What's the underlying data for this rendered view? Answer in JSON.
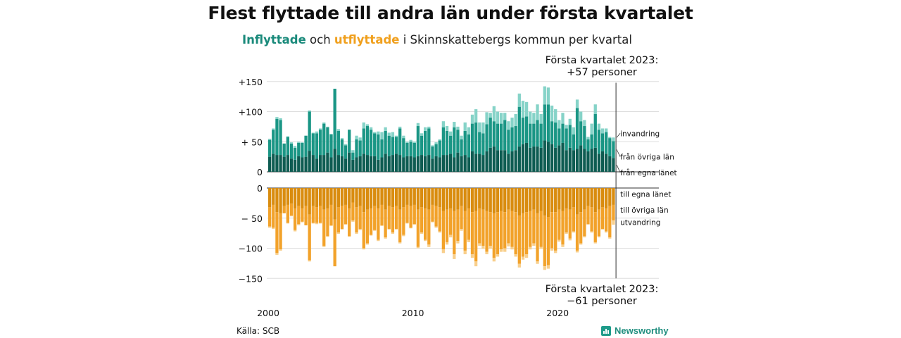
{
  "header": {
    "title": "Flest flyttade till andra län under första kvartalet",
    "subtitle_in": "Inflyttade",
    "subtitle_mid": " och ",
    "subtitle_out": "utflyttade",
    "subtitle_rest": " i Skinnskattebergs kommun per kvartal"
  },
  "annotations": {
    "top_line1": "Första kvartalet 2023:",
    "top_line2": "+57 personer",
    "bottom_line1": "Första kvartalet 2023:",
    "bottom_line2": "−61 personer"
  },
  "footer": {
    "source": "Källa: SCB",
    "brand": "Newsworthy"
  },
  "colors": {
    "in_egna": "#0e5c52",
    "in_ovriga": "#1a9685",
    "in_invandring": "#86d3c8",
    "ut_egna": "#d98c0f",
    "ut_ovriga": "#f2a22a",
    "ut_utvandring": "#f8cf8c",
    "grid": "#dddddd",
    "axis": "#333333"
  },
  "chart_data": {
    "type": "bar",
    "stacked": true,
    "x_start": "2000 Q1",
    "x_ticks": [
      "2000",
      "2010",
      "2020"
    ],
    "y_ticks_top": [
      "+150",
      "+100",
      "+ 50",
      "0"
    ],
    "y_ticks_bottom": [
      "0",
      "− 50",
      "−100",
      "−150"
    ],
    "ylim": [
      -150,
      150
    ],
    "grid": true,
    "series": [
      {
        "name": "invandring",
        "values": [
          2,
          2,
          3,
          3,
          0,
          1,
          2,
          3,
          2,
          1,
          0,
          2,
          1,
          3,
          2,
          2,
          1,
          1,
          0,
          3,
          2,
          2,
          0,
          4,
          6,
          5,
          10,
          3,
          4,
          2,
          5,
          12,
          6,
          5,
          8,
          2,
          3,
          4,
          2,
          3,
          2,
          5,
          4,
          6,
          3,
          2,
          3,
          2,
          10,
          8,
          7,
          9,
          5,
          6,
          14,
          12,
          15,
          22,
          16,
          18,
          20,
          8,
          25,
          20,
          18,
          12,
          14,
          16,
          20,
          22,
          28,
          24,
          20,
          18,
          26,
          16,
          30,
          28,
          26,
          22,
          14,
          18,
          6,
          10,
          12,
          14,
          16,
          10,
          4,
          18,
          16,
          10,
          8,
          6,
          2,
          6
        ]
      },
      {
        "name": "från övriga län",
        "values": [
          28,
          40,
          60,
          58,
          22,
          30,
          25,
          20,
          22,
          24,
          35,
          65,
          36,
          42,
          42,
          52,
          42,
          38,
          100,
          40,
          28,
          22,
          38,
          12,
          30,
          26,
          42,
          48,
          44,
          38,
          42,
          30,
          38,
          34,
          30,
          28,
          44,
          32,
          22,
          24,
          24,
          50,
          32,
          42,
          44,
          20,
          20,
          28,
          46,
          40,
          30,
          50,
          38,
          28,
          40,
          38,
          46,
          52,
          36,
          36,
          45,
          50,
          42,
          44,
          44,
          50,
          40,
          40,
          40,
          66,
          44,
          44,
          40,
          38,
          44,
          40,
          60,
          62,
          38,
          42,
          28,
          32,
          36,
          38,
          26,
          68,
          40,
          38,
          20,
          24,
          56,
          40,
          30,
          36,
          30,
          28
        ]
      },
      {
        "name": "från egna länet",
        "values": [
          25,
          30,
          28,
          28,
          25,
          28,
          22,
          20,
          26,
          24,
          25,
          35,
          28,
          22,
          28,
          28,
          32,
          24,
          38,
          28,
          26,
          22,
          32,
          20,
          24,
          26,
          30,
          28,
          26,
          26,
          20,
          24,
          30,
          26,
          28,
          30,
          28,
          24,
          26,
          26,
          24,
          26,
          28,
          26,
          28,
          22,
          26,
          24,
          28,
          28,
          30,
          24,
          32,
          26,
          28,
          24,
          34,
          30,
          30,
          28,
          34,
          40,
          42,
          36,
          36,
          36,
          30,
          34,
          36,
          42,
          46,
          48,
          40,
          42,
          42,
          40,
          52,
          50,
          46,
          40,
          44,
          48,
          36,
          40,
          36,
          38,
          44,
          38,
          34,
          38,
          40,
          30,
          34,
          30,
          26,
          23
        ]
      },
      {
        "name": "till egna länet",
        "values": [
          -32,
          -28,
          -40,
          -42,
          -30,
          -28,
          -26,
          -34,
          -30,
          -34,
          -30,
          -44,
          -30,
          -32,
          -30,
          -36,
          -34,
          -28,
          -52,
          -32,
          -30,
          -28,
          -34,
          -24,
          -32,
          -30,
          -40,
          -36,
          -34,
          -30,
          -34,
          -28,
          -36,
          -30,
          -32,
          -30,
          -36,
          -32,
          -28,
          -30,
          -28,
          -36,
          -32,
          -34,
          -36,
          -28,
          -30,
          -32,
          -38,
          -36,
          -34,
          -38,
          -36,
          -30,
          -38,
          -34,
          -40,
          -38,
          -34,
          -36,
          -38,
          -40,
          -42,
          -40,
          -38,
          -40,
          -36,
          -38,
          -40,
          -46,
          -42,
          -40,
          -38,
          -36,
          -42,
          -38,
          -46,
          -48,
          -40,
          -40,
          -36,
          -38,
          -34,
          -36,
          -32,
          -44,
          -40,
          -36,
          -30,
          -32,
          -40,
          -36,
          -32,
          -34,
          -30,
          -28
        ]
      },
      {
        "name": "till övriga län",
        "values": [
          -32,
          -38,
          -68,
          -60,
          -12,
          -30,
          -20,
          -36,
          -30,
          -22,
          -32,
          -76,
          -28,
          -26,
          -28,
          -60,
          -46,
          -34,
          -78,
          -42,
          -38,
          -32,
          -46,
          -30,
          -42,
          -38,
          -60,
          -56,
          -44,
          -40,
          -52,
          -34,
          -46,
          -38,
          -42,
          -38,
          -54,
          -46,
          -30,
          -36,
          -32,
          -62,
          -42,
          -52,
          -58,
          -28,
          -34,
          -40,
          -64,
          -54,
          -44,
          -72,
          -52,
          -38,
          -66,
          -52,
          -70,
          -84,
          -58,
          -60,
          -68,
          -56,
          -74,
          -70,
          -64,
          -60,
          -56,
          -60,
          -70,
          -80,
          -72,
          -70,
          -60,
          -56,
          -80,
          -60,
          -84,
          -80,
          -60,
          -64,
          -50,
          -56,
          -40,
          -48,
          -40,
          -60,
          -52,
          -44,
          -30,
          -40,
          -50,
          -44,
          -36,
          -38,
          -52,
          -26
        ]
      },
      {
        "name": "utvandring",
        "values": [
          -2,
          -2,
          -3,
          -2,
          0,
          -1,
          -1,
          -2,
          -2,
          -1,
          0,
          -2,
          -1,
          -2,
          -1,
          -2,
          -1,
          -1,
          0,
          -2,
          -1,
          -1,
          -1,
          -2,
          -2,
          -2,
          -2,
          -2,
          -1,
          -1,
          -2,
          -1,
          -2,
          -1,
          -2,
          -1,
          -2,
          -2,
          -1,
          -1,
          -1,
          -2,
          -2,
          -2,
          -4,
          -1,
          -2,
          -2,
          -6,
          -4,
          -4,
          -8,
          -4,
          -3,
          -6,
          -4,
          -6,
          -8,
          -4,
          -5,
          -4,
          -5,
          -6,
          -4,
          -4,
          -6,
          -5,
          -4,
          -4,
          -6,
          -5,
          -6,
          -4,
          -4,
          -4,
          -3,
          -6,
          -6,
          -4,
          -4,
          -3,
          -4,
          -2,
          -3,
          -2,
          -3,
          -2,
          -2,
          -1,
          -2,
          -2,
          -2,
          -1,
          -2,
          -2,
          -7
        ]
      }
    ],
    "labels_in": [
      "invandring",
      "från övriga län",
      "från egna länet"
    ],
    "labels_out": [
      "till egna länet",
      "till övriga län",
      "utvandring"
    ]
  }
}
